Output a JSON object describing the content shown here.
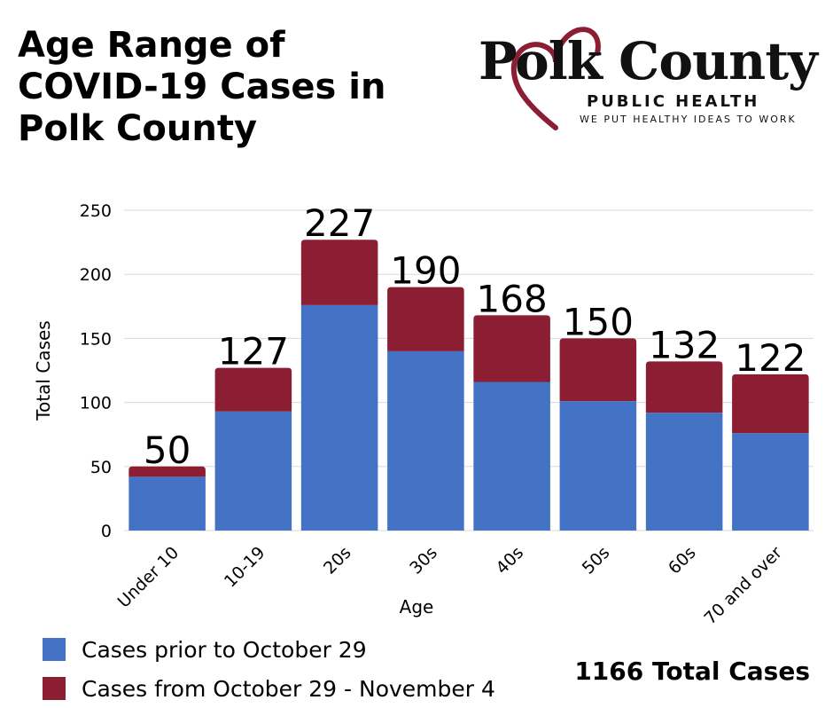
{
  "header": {
    "title_lines": [
      "Age Range of",
      "COVID-19 Cases in",
      "Polk County"
    ]
  },
  "logo": {
    "brand": "Polk County",
    "subtitle": "PUBLIC HEALTH",
    "tagline": "WE PUT HEALTHY IDEAS TO WORK"
  },
  "chart_data": {
    "type": "bar",
    "stacked": true,
    "categories": [
      "Under 10",
      "10-19",
      "20s",
      "30s",
      "40s",
      "50s",
      "60s",
      "70 and over"
    ],
    "series": [
      {
        "name": "Cases prior to October 29",
        "color": "#4472c4",
        "values": [
          42,
          93,
          176,
          140,
          116,
          101,
          92,
          76
        ]
      },
      {
        "name": "Cases from October 29 - November 4",
        "color": "#8b1e32",
        "values": [
          8,
          34,
          51,
          50,
          52,
          49,
          40,
          46
        ]
      }
    ],
    "totals": [
      "50",
      "127",
      "227",
      "190",
      "168",
      "150",
      "132",
      "122"
    ],
    "xlabel": "Age",
    "ylabel": "Total Cases",
    "ylim": [
      0,
      250
    ],
    "yticks": [
      "0",
      "50",
      "100",
      "150",
      "200",
      "250"
    ],
    "grid": true,
    "legend_position": "bottom-left"
  },
  "footer": {
    "total_cases": "1166 Total Cases"
  },
  "colors": {
    "series1": "#4472c4",
    "series2": "#8b1e32",
    "grid": "#d9d9d9"
  }
}
